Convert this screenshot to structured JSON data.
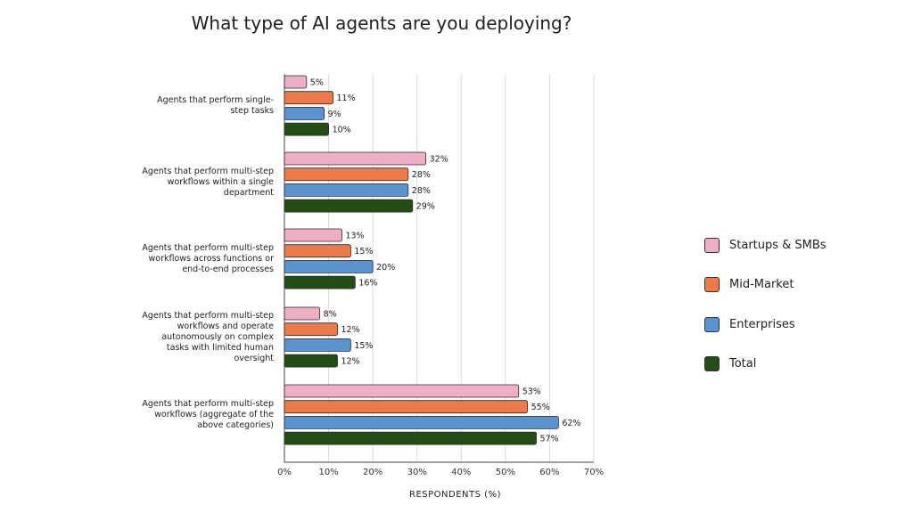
{
  "chart_data": {
    "type": "bar",
    "orientation": "horizontal",
    "title": "What type of AI agents are you deploying?",
    "xlabel": "RESPONDENTS (%)",
    "ylabel": "",
    "xlim": [
      0,
      70
    ],
    "xticks": [
      "0%",
      "10%",
      "20%",
      "30%",
      "40%",
      "50%",
      "60%",
      "70%"
    ],
    "grid": true,
    "legend_position": "right",
    "categories": [
      "Agents that perform single-step tasks",
      "Agents that perform multi-step workflows within a single department",
      "Agents that perform multi-step workflows across functions or end-to-end processes",
      "Agents that perform multi-step workflows and operate autonomously on complex tasks with limited human oversight",
      "Agents that perform multi-step workflows (aggregate of the above categories)"
    ],
    "series": [
      {
        "name": "Startups & SMBs",
        "color": "#eeaec6",
        "values": [
          5,
          32,
          13,
          8,
          53
        ]
      },
      {
        "name": "Mid-Market",
        "color": "#ee7a4c",
        "values": [
          11,
          28,
          15,
          12,
          55
        ]
      },
      {
        "name": "Enterprises",
        "color": "#5a93d0",
        "values": [
          9,
          28,
          20,
          15,
          62
        ]
      },
      {
        "name": "Total",
        "color": "#234d14",
        "values": [
          10,
          29,
          16,
          12,
          57
        ]
      }
    ]
  }
}
